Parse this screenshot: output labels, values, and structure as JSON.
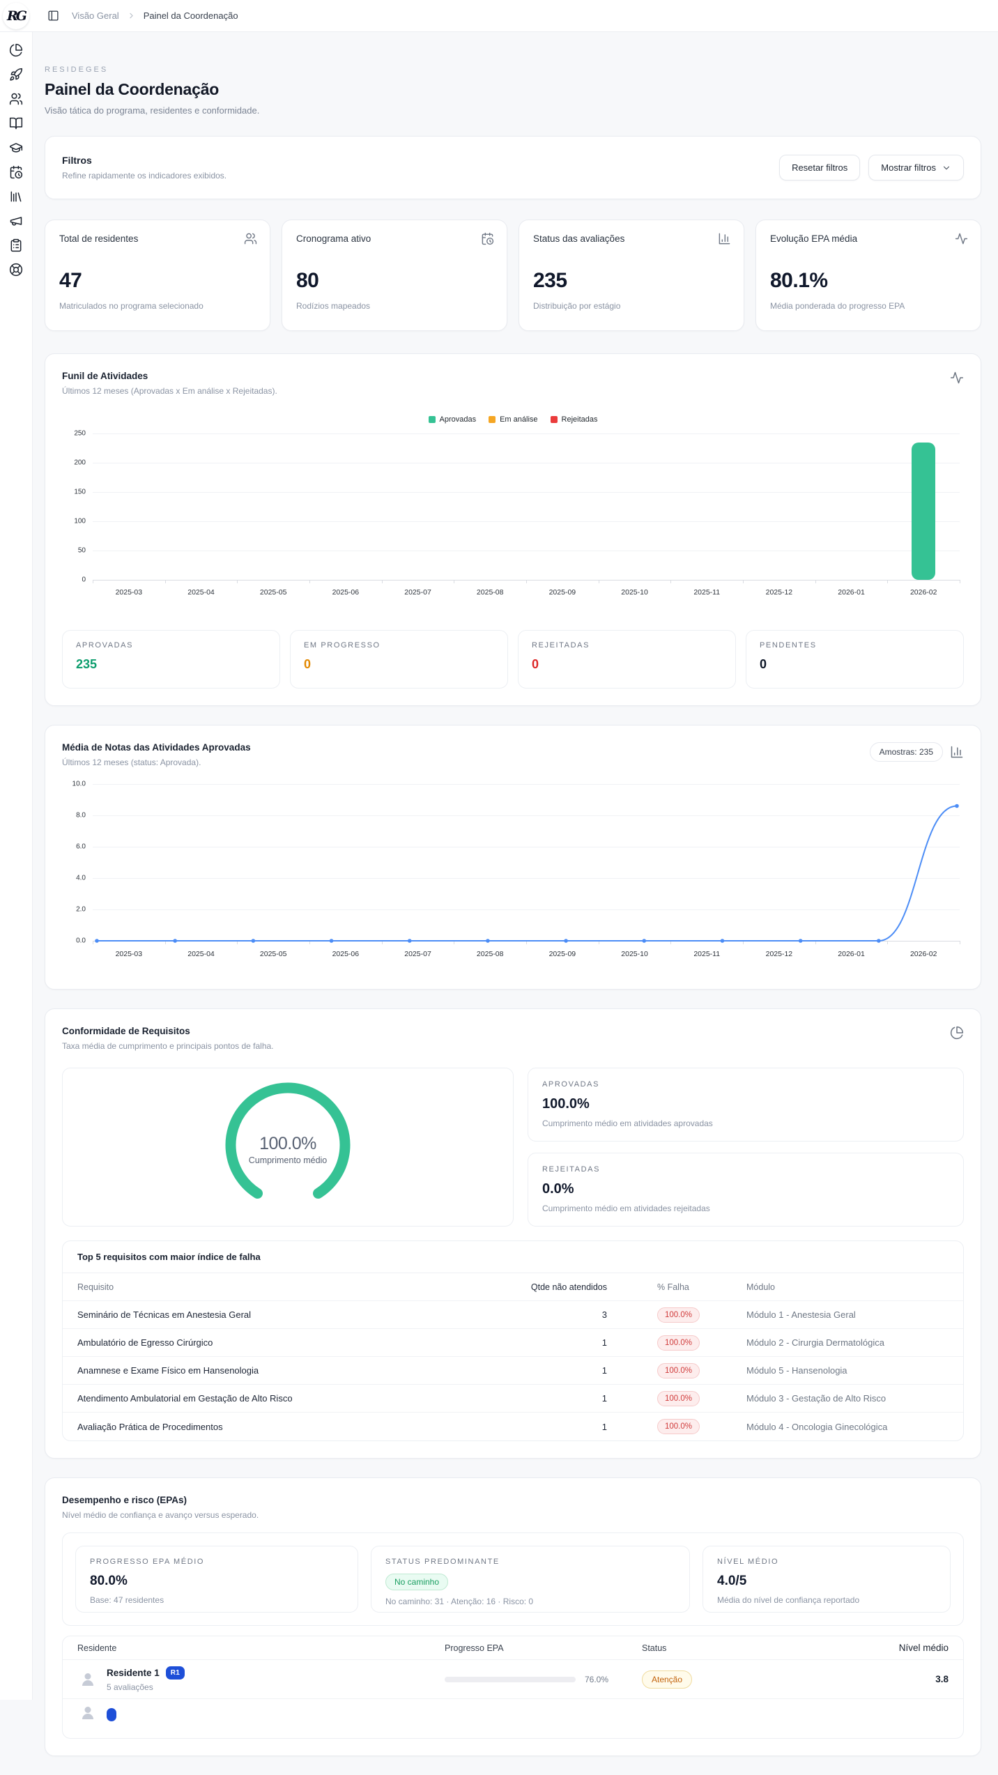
{
  "topbar": {
    "logo_text": "RG",
    "breadcrumb": [
      "Visão Geral",
      "Painel da Coordenação"
    ]
  },
  "sidebar": {
    "icons": [
      "pie-chart",
      "rocket",
      "users",
      "book-open",
      "graduation-cap",
      "calendar-clock",
      "library",
      "megaphone",
      "clipboard-list",
      "life-buoy"
    ]
  },
  "header": {
    "eyebrow": "RESIDEGES",
    "title": "Painel da Coordenação",
    "subtitle": "Visão tática do programa, residentes e conformidade."
  },
  "filters": {
    "title": "Filtros",
    "subtitle": "Refine rapidamente os indicadores exibidos.",
    "reset_label": "Resetar filtros",
    "show_label": "Mostrar filtros"
  },
  "stat_cards": [
    {
      "label": "Total de residentes",
      "icon": "users",
      "value": "47",
      "caption": "Matriculados no programa selecionado"
    },
    {
      "label": "Cronograma ativo",
      "icon": "calendar-clock",
      "value": "80",
      "caption": "Rodízios mapeados"
    },
    {
      "label": "Status das avaliações",
      "icon": "bar-chart",
      "value": "235",
      "caption": "Distribuição por estágio"
    },
    {
      "label": "Evolução EPA média",
      "icon": "activity",
      "value": "80.1%",
      "caption": "Média ponderada do progresso EPA"
    }
  ],
  "funnel": {
    "title": "Funil de Atividades",
    "subtitle": "Últimos 12 meses (Aprovadas x Em análise x Rejeitadas).",
    "legend": [
      {
        "label": "Aprovadas",
        "color": "#35c294"
      },
      {
        "label": "Em análise",
        "color": "#f5a623"
      },
      {
        "label": "Rejeitadas",
        "color": "#ea3b3b"
      }
    ],
    "stats": [
      {
        "label": "APROVADAS",
        "value": "235",
        "color": "#0e9e6e"
      },
      {
        "label": "EM PROGRESSO",
        "value": "0",
        "color": "#e28800"
      },
      {
        "label": "REJEITADAS",
        "value": "0",
        "color": "#dc2626"
      },
      {
        "label": "PENDENTES",
        "value": "0",
        "color": "#0c1526"
      }
    ]
  },
  "grades_card": {
    "title": "Média de Notas das Atividades Aprovadas",
    "subtitle": "Últimos 12 meses (status: Aprovada).",
    "badge": "Amostras: 235"
  },
  "compliance": {
    "title": "Conformidade de Requisitos",
    "subtitle": "Taxa média de cumprimento e principais pontos de falha.",
    "gauge_value": "100.0%",
    "gauge_label": "Cumprimento médio",
    "boxes": [
      {
        "label": "APROVADAS",
        "value": "100.0%",
        "caption": "Cumprimento médio em atividades aprovadas"
      },
      {
        "label": "REJEITADAS",
        "value": "0.0%",
        "caption": "Cumprimento médio em atividades rejeitadas"
      }
    ],
    "table": {
      "title": "Top 5 requisitos com maior índice de falha",
      "columns": [
        "Requisito",
        "Qtde não atendidos",
        "% Falha",
        "Módulo"
      ],
      "rows": [
        {
          "requisito": "Seminário de Técnicas em Anestesia Geral",
          "qtde": "3",
          "falha": "100.0%",
          "modulo": "Módulo 1 - Anestesia Geral"
        },
        {
          "requisito": "Ambulatório de Egresso Cirúrgico",
          "qtde": "1",
          "falha": "100.0%",
          "modulo": "Módulo 2 - Cirurgia Dermatológica"
        },
        {
          "requisito": "Anamnese e Exame Físico em Hansenologia",
          "qtde": "1",
          "falha": "100.0%",
          "modulo": "Módulo 5 - Hansenologia"
        },
        {
          "requisito": "Atendimento Ambulatorial em Gestação de Alto Risco",
          "qtde": "1",
          "falha": "100.0%",
          "modulo": "Módulo 3 - Gestação de Alto Risco"
        },
        {
          "requisito": "Avaliação Prática de Procedimentos",
          "qtde": "1",
          "falha": "100.0%",
          "modulo": "Módulo 4 - Oncologia Ginecológica"
        }
      ]
    }
  },
  "performance": {
    "title": "Desempenho e risco (EPAs)",
    "subtitle": "Nível médio de confiança e avanço versus esperado.",
    "boxes": [
      {
        "label": "PROGRESSO EPA MÉDIO",
        "value": "80.0%",
        "caption": "Base: 47 residentes"
      },
      {
        "label": "STATUS PREDOMINANTE",
        "badge": "No caminho",
        "caption": "No caminho: 31 · Atenção: 16 · Risco: 0"
      },
      {
        "label": "NÍVEL MÉDIO",
        "value": "4.0/5",
        "caption": "Média do nível de confiança reportado"
      }
    ],
    "table": {
      "columns": [
        "Residente",
        "Progresso EPA",
        "Status",
        "Nível médio"
      ],
      "rows": [
        {
          "name": "Residente 1",
          "badge": "R1",
          "sub": "5 avaliações",
          "progress": 76.0,
          "progress_label": "76.0%",
          "status": "Atenção",
          "nivel": "3.8"
        }
      ],
      "partial_next_row": true
    }
  },
  "chart_data": [
    {
      "type": "bar",
      "id": "funnel",
      "categories": [
        "2025-03",
        "2025-04",
        "2025-05",
        "2025-06",
        "2025-07",
        "2025-08",
        "2025-09",
        "2025-10",
        "2025-11",
        "2025-12",
        "2026-01",
        "2026-02"
      ],
      "series": [
        {
          "name": "Aprovadas",
          "color": "#35c294",
          "values": [
            0,
            0,
            0,
            0,
            0,
            0,
            0,
            0,
            0,
            0,
            0,
            235
          ]
        },
        {
          "name": "Em análise",
          "color": "#f5a623",
          "values": [
            0,
            0,
            0,
            0,
            0,
            0,
            0,
            0,
            0,
            0,
            0,
            0
          ]
        },
        {
          "name": "Rejeitadas",
          "color": "#ea3b3b",
          "values": [
            0,
            0,
            0,
            0,
            0,
            0,
            0,
            0,
            0,
            0,
            0,
            0
          ]
        }
      ],
      "ylim": [
        0,
        250
      ],
      "yticks": [
        0,
        50,
        100,
        150,
        200,
        250
      ],
      "grid": true,
      "legend_position": "top-center"
    },
    {
      "type": "line",
      "id": "grades",
      "x": [
        "2025-03",
        "2025-04",
        "2025-05",
        "2025-06",
        "2025-07",
        "2025-08",
        "2025-09",
        "2025-10",
        "2025-11",
        "2025-12",
        "2026-01",
        "2026-02"
      ],
      "values": [
        0,
        0,
        0,
        0,
        0,
        0,
        0,
        0,
        0,
        0,
        0,
        8.6
      ],
      "color": "#4c8df6",
      "ylim": [
        0,
        10
      ],
      "yticks": [
        0,
        2,
        4,
        6,
        8,
        10
      ],
      "tick_decimals": 1,
      "grid": true
    },
    {
      "type": "gauge",
      "id": "compliance-gauge",
      "value": 100.0,
      "max": 100,
      "label": "Cumprimento médio",
      "color": "#35c294"
    }
  ]
}
